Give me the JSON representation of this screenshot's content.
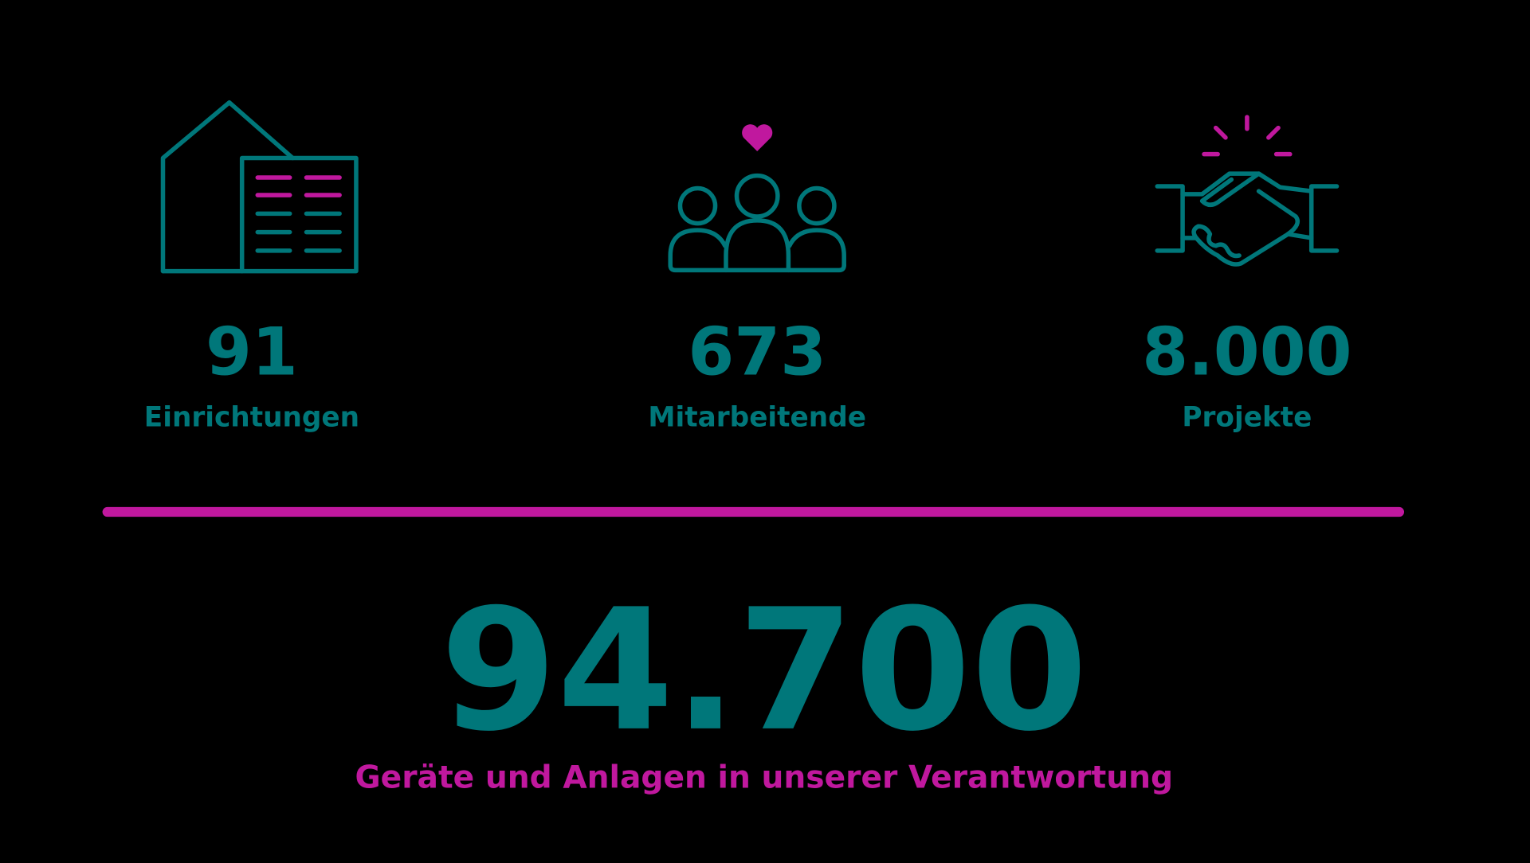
{
  "stats": [
    {
      "value": "91",
      "label": "Einrichtungen"
    },
    {
      "value": "673",
      "label": "Mitarbeitende"
    },
    {
      "value": "8.000",
      "label": "Projekte"
    }
  ],
  "highlight": {
    "value": "94.700",
    "label": "Geräte und Anlagen in unserer Verantwortung"
  }
}
